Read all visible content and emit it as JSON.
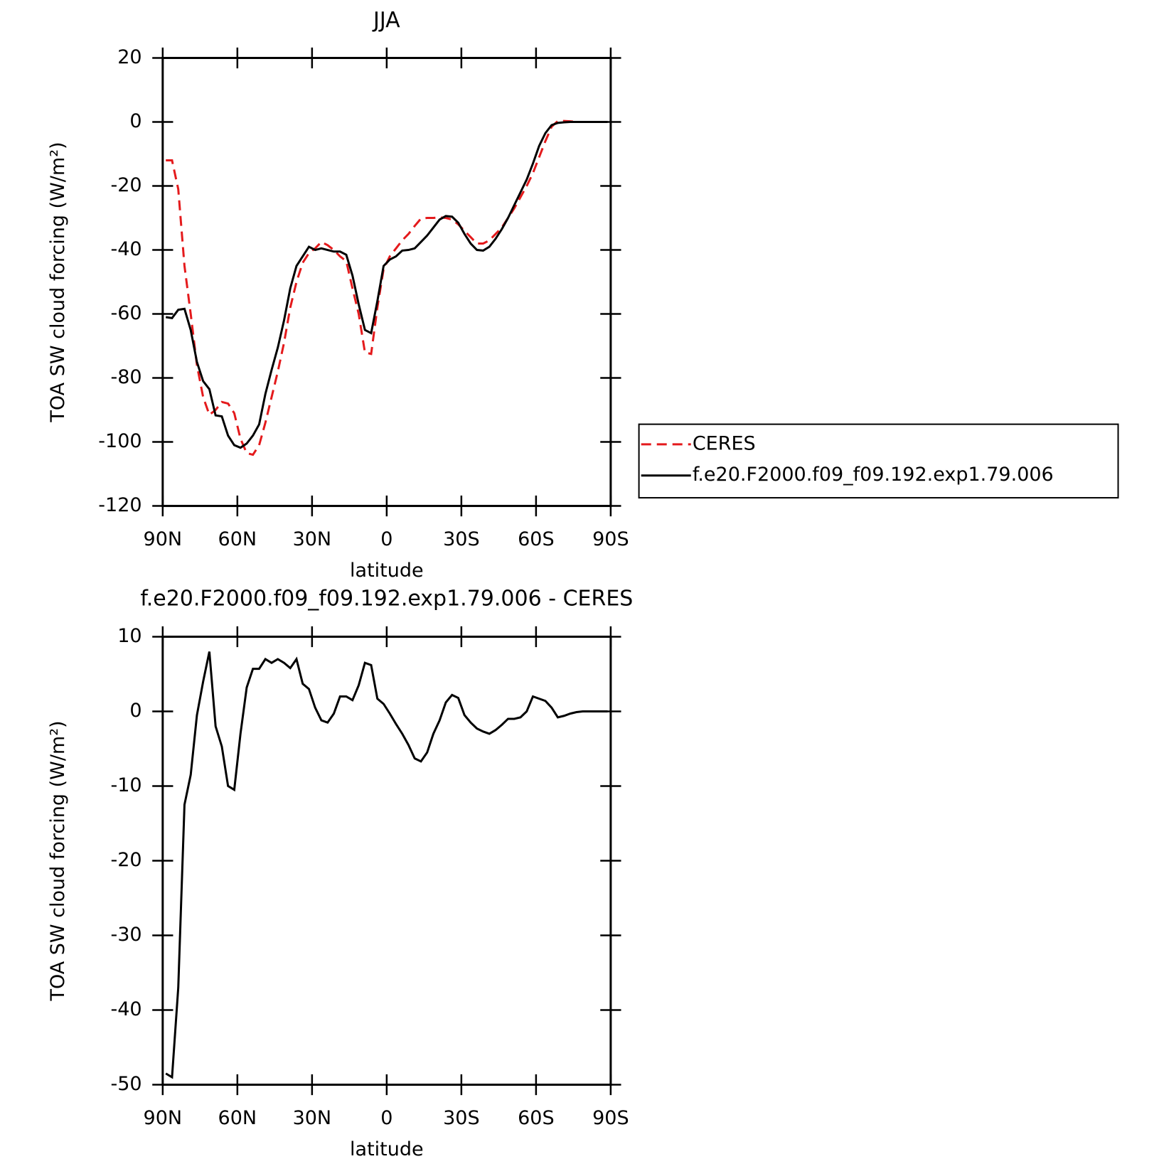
{
  "chart_data": [
    {
      "type": "line",
      "title": "JJA",
      "xlabel": "latitude",
      "ylabel": "TOA SW cloud forcing (W/m²)",
      "xlim": [
        90,
        -90
      ],
      "ylim": [
        -120,
        20
      ],
      "xticks": [
        {
          "value": 90,
          "label": "90N"
        },
        {
          "value": 60,
          "label": "60N"
        },
        {
          "value": 30,
          "label": "30N"
        },
        0,
        {
          "value": -30,
          "label": "30S"
        },
        {
          "value": -60,
          "label": "60S"
        },
        {
          "value": -90,
          "label": "90S"
        }
      ],
      "yticks": [
        20,
        0,
        -20,
        -40,
        -60,
        -80,
        -100,
        -120
      ],
      "legend": "right",
      "x": [
        88.75,
        86.25,
        83.75,
        81.25,
        78.75,
        76.25,
        73.75,
        71.25,
        68.75,
        66.25,
        63.75,
        61.25,
        58.75,
        56.25,
        53.75,
        51.25,
        48.75,
        46.25,
        43.75,
        41.25,
        38.75,
        36.25,
        33.75,
        31.25,
        28.75,
        26.25,
        23.75,
        21.25,
        18.75,
        16.25,
        13.75,
        11.25,
        8.75,
        6.25,
        3.75,
        1.25,
        -1.25,
        -3.75,
        -6.25,
        -8.75,
        -11.25,
        -13.75,
        -16.25,
        -18.75,
        -21.25,
        -23.75,
        -26.25,
        -28.75,
        -31.25,
        -33.75,
        -36.25,
        -38.75,
        -41.25,
        -43.75,
        -46.25,
        -48.75,
        -51.25,
        -53.75,
        -56.25,
        -58.75,
        -61.25,
        -63.75,
        -66.25,
        -68.75,
        -71.25,
        -73.75,
        -76.25,
        -78.75,
        -81.25,
        -83.75,
        -86.25,
        -88.75
      ],
      "series": [
        {
          "name": "CERES",
          "color": "#e41a1c",
          "dash": true,
          "values": [
            -12,
            -12,
            -21,
            -45,
            -60,
            -76,
            -86,
            -91.5,
            -90,
            -87.5,
            -88,
            -91,
            -99,
            -103.5,
            -104,
            -101,
            -94,
            -86,
            -78,
            -69,
            -58,
            -50,
            -44,
            -41,
            -39.5,
            -37.5,
            -38.5,
            -40,
            -42,
            -43.5,
            -52,
            -60,
            -72,
            -72.5,
            -58,
            -46,
            -42,
            -39.5,
            -37,
            -35,
            -32.5,
            -30.2,
            -30,
            -30,
            -29.8,
            -30,
            -30.5,
            -32,
            -34,
            -36,
            -38,
            -38,
            -37,
            -35,
            -33,
            -30,
            -27,
            -23.5,
            -20,
            -16,
            -11,
            -6,
            -1.5,
            0.3,
            0.3,
            0.2,
            0,
            0,
            0,
            0,
            0,
            0
          ]
        },
        {
          "name": "f.e20.F2000.f09_f09.192.exp1.79.006",
          "color": "#000000",
          "dash": false,
          "values": [
            -61,
            -61.3,
            -58.7,
            -58.4,
            -65,
            -75,
            -81,
            -83.5,
            -91.7,
            -92,
            -98,
            -101,
            -101.8,
            -100.5,
            -98,
            -94.5,
            -85,
            -77.5,
            -70.5,
            -62,
            -52,
            -45,
            -42,
            -39,
            -40,
            -39.5,
            -40,
            -40.5,
            -40.5,
            -41.5,
            -48,
            -57,
            -65,
            -66,
            -56,
            -45,
            -43,
            -42,
            -40.2,
            -40,
            -39.5,
            -37.5,
            -35.5,
            -33,
            -30.5,
            -29.4,
            -29.6,
            -31.5,
            -35,
            -38,
            -40,
            -40.2,
            -39,
            -36.5,
            -33.5,
            -30,
            -26,
            -22,
            -18,
            -13,
            -7.5,
            -3.5,
            -1,
            -0.3,
            -0.1,
            0,
            0,
            0,
            0,
            0,
            0,
            0
          ]
        }
      ]
    },
    {
      "type": "line",
      "title": "f.e20.F2000.f09_f09.192.exp1.79.006 - CERES",
      "xlabel": "latitude",
      "ylabel": "TOA SW cloud forcing (W/m²)",
      "xlim": [
        90,
        -90
      ],
      "ylim": [
        -50,
        10
      ],
      "xticks": [
        {
          "value": 90,
          "label": "90N"
        },
        {
          "value": 60,
          "label": "60N"
        },
        {
          "value": 30,
          "label": "30N"
        },
        0,
        {
          "value": -30,
          "label": "30S"
        },
        {
          "value": -60,
          "label": "60S"
        },
        {
          "value": -90,
          "label": "90S"
        }
      ],
      "yticks": [
        10,
        0,
        -10,
        -20,
        -30,
        -40,
        -50
      ],
      "x": [
        88.75,
        86.25,
        83.75,
        81.25,
        78.75,
        76.25,
        73.75,
        71.25,
        68.75,
        66.25,
        63.75,
        61.25,
        58.75,
        56.25,
        53.75,
        51.25,
        48.75,
        46.25,
        43.75,
        41.25,
        38.75,
        36.25,
        33.75,
        31.25,
        28.75,
        26.25,
        23.75,
        21.25,
        18.75,
        16.25,
        13.75,
        11.25,
        8.75,
        6.25,
        3.75,
        1.25,
        -1.25,
        -3.75,
        -6.25,
        -8.75,
        -11.25,
        -13.75,
        -16.25,
        -18.75,
        -21.25,
        -23.75,
        -26.25,
        -28.75,
        -31.25,
        -33.75,
        -36.25,
        -38.75,
        -41.25,
        -43.75,
        -46.25,
        -48.75,
        -51.25,
        -53.75,
        -56.25,
        -58.75,
        -61.25,
        -63.75,
        -66.25,
        -68.75,
        -71.25,
        -73.75,
        -76.25,
        -78.75,
        -81.25,
        -83.75,
        -86.25,
        -88.75
      ],
      "series": [
        {
          "color": "#000000",
          "dash": false,
          "values": [
            -48.5,
            -49,
            -37,
            -12.5,
            -8.5,
            -0.5,
            4,
            8,
            -2,
            -4.7,
            -10,
            -10.5,
            -3,
            3.2,
            5.7,
            5.7,
            7,
            6.5,
            7,
            6.5,
            5.8,
            7,
            3.7,
            3,
            0.5,
            -1.2,
            -1.5,
            -0.3,
            2,
            2,
            1.5,
            3.5,
            6.5,
            6.2,
            1.7,
            1,
            -0.3,
            -1.7,
            -3,
            -4.5,
            -6.3,
            -6.7,
            -5.5,
            -3,
            -1.2,
            1.2,
            2.2,
            1.8,
            -0.5,
            -1.5,
            -2.3,
            -2.7,
            -3,
            -2.5,
            -1.8,
            -1,
            -1,
            -0.8,
            0,
            2,
            1.7,
            1.4,
            0.5,
            -0.8,
            -0.6,
            -0.3,
            -0.1,
            0,
            0,
            0,
            0,
            0
          ]
        }
      ]
    }
  ]
}
